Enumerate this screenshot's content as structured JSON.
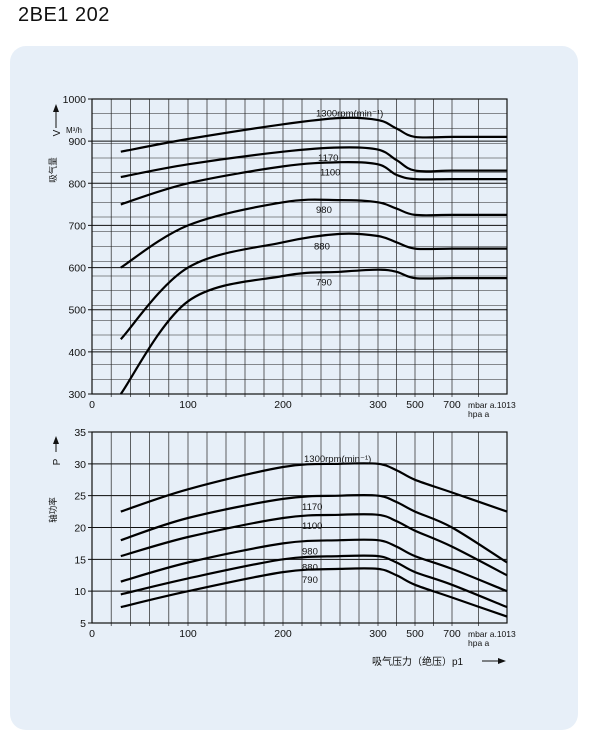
{
  "page": {
    "title": "2BE1 202"
  },
  "x_axis": {
    "ticks": [
      {
        "v": 0,
        "label": "0"
      },
      {
        "v": 100,
        "label": "100"
      },
      {
        "v": 200,
        "label": "200"
      },
      {
        "v": 300,
        "label": "300"
      },
      {
        "v": 500,
        "label": "500"
      },
      {
        "v": 700,
        "label": "700"
      }
    ],
    "unit_line1": "mbar a.1013",
    "unit_line2": "hpa  a",
    "label": "吸气压力（绝压）p1"
  },
  "chart_data": [
    {
      "type": "line",
      "ylabel": "吸气量",
      "ysymbol": "V",
      "yunit": "M³/h",
      "ylim": [
        300,
        1000
      ],
      "yticks": [
        300,
        400,
        500,
        600,
        700,
        800,
        900,
        1000
      ],
      "series": [
        {
          "name": "1300rpm(min⁻¹)",
          "points": [
            [
              30,
              875
            ],
            [
              100,
              905
            ],
            [
              200,
              940
            ],
            [
              260,
              955
            ],
            [
              300,
              950
            ],
            [
              400,
              930
            ],
            [
              500,
              910
            ],
            [
              700,
              910
            ],
            [
              1013,
              910
            ]
          ]
        },
        {
          "name": "1170",
          "points": [
            [
              30,
              815
            ],
            [
              100,
              845
            ],
            [
              200,
              875
            ],
            [
              260,
              885
            ],
            [
              300,
              880
            ],
            [
              400,
              855
            ],
            [
              500,
              830
            ],
            [
              700,
              830
            ],
            [
              1013,
              830
            ]
          ]
        },
        {
          "name": "1100",
          "points": [
            [
              30,
              750
            ],
            [
              100,
              800
            ],
            [
              200,
              840
            ],
            [
              260,
              850
            ],
            [
              300,
              845
            ],
            [
              400,
              820
            ],
            [
              500,
              810
            ],
            [
              700,
              810
            ],
            [
              1013,
              810
            ]
          ]
        },
        {
          "name": "980",
          "points": [
            [
              30,
              600
            ],
            [
              100,
              700
            ],
            [
              200,
              755
            ],
            [
              260,
              760
            ],
            [
              300,
              755
            ],
            [
              400,
              740
            ],
            [
              500,
              725
            ],
            [
              700,
              725
            ],
            [
              1013,
              725
            ]
          ]
        },
        {
          "name": "880",
          "points": [
            [
              30,
              430
            ],
            [
              100,
              600
            ],
            [
              200,
              660
            ],
            [
              260,
              680
            ],
            [
              300,
              675
            ],
            [
              400,
              660
            ],
            [
              500,
              645
            ],
            [
              700,
              645
            ],
            [
              1013,
              645
            ]
          ]
        },
        {
          "name": "790",
          "points": [
            [
              30,
              300
            ],
            [
              100,
              520
            ],
            [
              200,
              580
            ],
            [
              260,
              590
            ],
            [
              300,
              595
            ],
            [
              400,
              590
            ],
            [
              500,
              575
            ],
            [
              700,
              575
            ],
            [
              1013,
              575
            ]
          ]
        }
      ]
    },
    {
      "type": "line",
      "ylabel": "轴功率",
      "ysymbol": "P",
      "ylim": [
        5,
        35
      ],
      "yticks": [
        5,
        10,
        15,
        20,
        25,
        30,
        35
      ],
      "series": [
        {
          "name": "1300rpm(min⁻¹)",
          "points": [
            [
              30,
              22.5
            ],
            [
              100,
              26
            ],
            [
              200,
              29.5
            ],
            [
              260,
              30
            ],
            [
              300,
              30
            ],
            [
              400,
              29
            ],
            [
              500,
              27.5
            ],
            [
              700,
              25.5
            ],
            [
              1013,
              22.5
            ]
          ]
        },
        {
          "name": "1170",
          "points": [
            [
              30,
              18
            ],
            [
              100,
              21.5
            ],
            [
              200,
              24.5
            ],
            [
              260,
              25
            ],
            [
              300,
              25
            ],
            [
              400,
              24
            ],
            [
              500,
              22.5
            ],
            [
              700,
              20
            ],
            [
              1013,
              14.5
            ]
          ]
        },
        {
          "name": "1100",
          "points": [
            [
              30,
              15.5
            ],
            [
              100,
              18.5
            ],
            [
              200,
              21.5
            ],
            [
              260,
              22
            ],
            [
              300,
              22
            ],
            [
              400,
              21
            ],
            [
              500,
              19.5
            ],
            [
              700,
              17
            ],
            [
              1013,
              12.5
            ]
          ]
        },
        {
          "name": "980",
          "points": [
            [
              30,
              11.5
            ],
            [
              100,
              14.5
            ],
            [
              200,
              17.5
            ],
            [
              260,
              18
            ],
            [
              300,
              18
            ],
            [
              400,
              17
            ],
            [
              500,
              15.5
            ],
            [
              700,
              13.5
            ],
            [
              1013,
              10
            ]
          ]
        },
        {
          "name": "880",
          "points": [
            [
              30,
              9.5
            ],
            [
              100,
              12
            ],
            [
              200,
              15
            ],
            [
              260,
              15.5
            ],
            [
              300,
              15.5
            ],
            [
              400,
              14.5
            ],
            [
              500,
              13
            ],
            [
              700,
              11
            ],
            [
              1013,
              7.5
            ]
          ]
        },
        {
          "name": "790",
          "points": [
            [
              30,
              7.5
            ],
            [
              100,
              10
            ],
            [
              200,
              13
            ],
            [
              260,
              13.5
            ],
            [
              300,
              13.5
            ],
            [
              400,
              12.5
            ],
            [
              500,
              11
            ],
            [
              700,
              9
            ],
            [
              1013,
              6
            ]
          ]
        }
      ]
    }
  ]
}
